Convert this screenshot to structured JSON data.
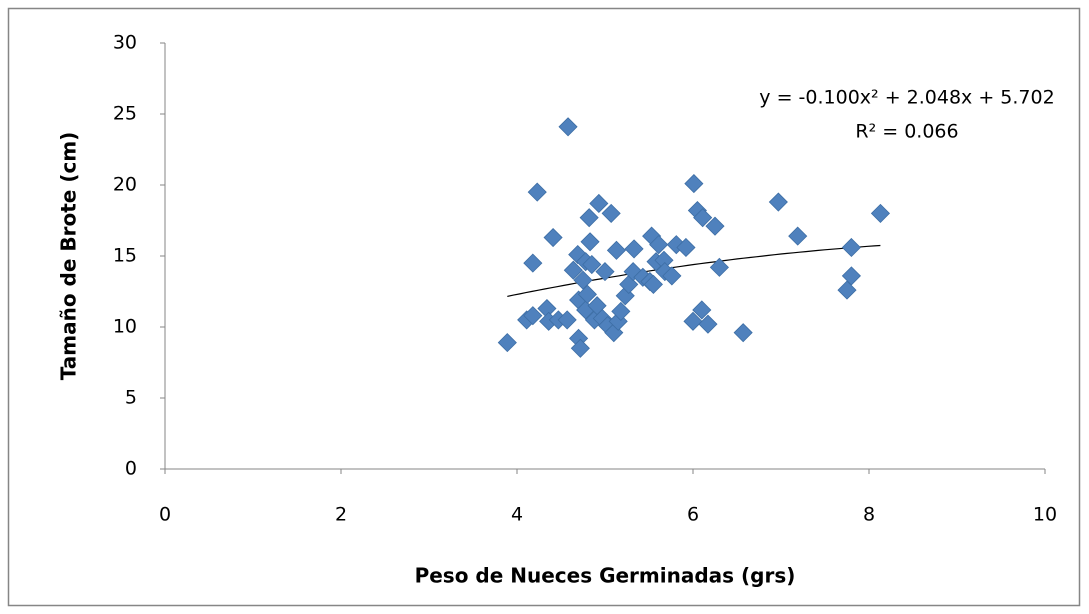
{
  "chart_data": {
    "type": "scatter",
    "xlabel": "Peso de Nueces Germinadas (grs)",
    "ylabel": "Tamaño de Brote (cm)",
    "xlim": [
      0,
      10
    ],
    "xticks": [
      0,
      2,
      4,
      6,
      8,
      10
    ],
    "ylim": [
      0,
      30
    ],
    "yticks": [
      0,
      5,
      10,
      15,
      20,
      25,
      30
    ],
    "grid": false,
    "color": "#4f81bd",
    "x": [
      3.89,
      4.11,
      4.18,
      4.18,
      4.23,
      4.34,
      4.36,
      4.41,
      4.47,
      4.57,
      4.58,
      4.64,
      4.69,
      4.7,
      4.7,
      4.72,
      4.75,
      4.78,
      4.78,
      4.8,
      4.82,
      4.83,
      4.85,
      4.88,
      4.91,
      4.93,
      4.97,
      5.0,
      5.03,
      5.07,
      5.1,
      5.13,
      5.15,
      5.18,
      5.23,
      5.27,
      5.33,
      5.32,
      5.43,
      5.51,
      5.55,
      5.53,
      5.58,
      5.61,
      5.67,
      5.68,
      5.76,
      5.81,
      5.92,
      6.0,
      6.01,
      6.05,
      6.1,
      6.11,
      6.17,
      6.25,
      6.3,
      6.57,
      6.97,
      7.19,
      7.75,
      7.8,
      7.8,
      8.13
    ],
    "values": [
      8.9,
      10.5,
      10.8,
      14.5,
      19.5,
      11.3,
      10.4,
      16.3,
      10.5,
      10.5,
      24.1,
      14.0,
      15.1,
      11.9,
      9.2,
      8.5,
      13.3,
      14.6,
      11.2,
      12.3,
      17.7,
      16.0,
      14.4,
      10.5,
      11.5,
      18.7,
      10.6,
      13.9,
      10.1,
      18.0,
      9.6,
      15.4,
      10.4,
      11.1,
      12.2,
      13.0,
      15.5,
      13.9,
      13.5,
      13.2,
      13.0,
      16.4,
      14.6,
      15.8,
      14.7,
      13.9,
      13.6,
      15.8,
      15.6,
      10.4,
      20.1,
      18.2,
      11.2,
      17.7,
      10.2,
      17.1,
      14.2,
      9.6,
      18.8,
      16.4,
      12.6,
      13.6,
      15.6,
      18.0
    ],
    "trendline": {
      "type": "polynomial",
      "coefficients": [
        -0.1,
        2.048,
        5.702
      ],
      "color": "#000000",
      "label": "y = -0.100x² + 2.048x + 5.702",
      "r2_label": "R² = 0.066"
    }
  }
}
